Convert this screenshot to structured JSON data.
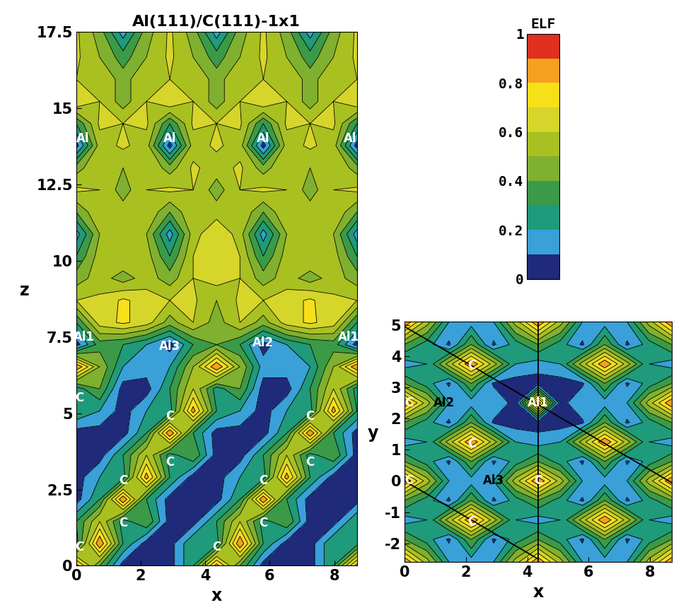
{
  "chart_data": [
    {
      "type": "contour",
      "title": "Al(111)/C(111)-1x1",
      "x_label": "x",
      "y_label": "z",
      "xlim": [
        0,
        8.7
      ],
      "ylim": [
        0,
        17.5
      ],
      "xticks": [
        0,
        2,
        4,
        6,
        8
      ],
      "yticks": [
        0,
        2.5,
        5,
        7.5,
        10,
        12.5,
        15,
        17.5
      ],
      "x": [
        0,
        0.725,
        1.45,
        2.175,
        2.9,
        3.625,
        4.35,
        5.075,
        5.8,
        6.525,
        7.25,
        7.975,
        8.7
      ],
      "y": [
        0,
        0.725,
        1.45,
        2.175,
        2.9,
        3.625,
        4.35,
        5.075,
        5.8,
        6.525,
        7.25,
        7.975,
        8.7,
        9.425,
        10.15,
        10.875,
        11.6,
        12.325,
        13.05,
        13.775,
        14.5,
        15.225,
        15.95,
        16.675,
        17.5
      ],
      "values": [
        [
          0.85,
          0.4,
          0.05,
          0.05,
          0.05,
          0.3,
          0.85,
          0.4,
          0.05,
          0.05,
          0.05,
          0.3,
          0.85
        ],
        [
          0.25,
          0.9,
          0.3,
          0.05,
          0.05,
          0.3,
          0.25,
          0.9,
          0.3,
          0.05,
          0.05,
          0.3,
          0.25
        ],
        [
          0.3,
          0.6,
          0.25,
          0.4,
          0.05,
          0.05,
          0.3,
          0.6,
          0.25,
          0.4,
          0.05,
          0.05,
          0.3
        ],
        [
          0.05,
          0.3,
          0.9,
          0.3,
          0.05,
          0.05,
          0.05,
          0.3,
          0.9,
          0.3,
          0.05,
          0.05,
          0.05
        ],
        [
          0.05,
          0.2,
          0.25,
          0.85,
          0.3,
          0.05,
          0.05,
          0.2,
          0.25,
          0.85,
          0.3,
          0.05,
          0.05
        ],
        [
          0.05,
          0.05,
          0.3,
          0.6,
          0.25,
          0.4,
          0.05,
          0.05,
          0.3,
          0.6,
          0.25,
          0.4,
          0.05
        ],
        [
          0.05,
          0.05,
          0.05,
          0.3,
          0.9,
          0.3,
          0.05,
          0.05,
          0.05,
          0.3,
          0.9,
          0.3,
          0.05
        ],
        [
          0.3,
          0.2,
          0.05,
          0.2,
          0.25,
          0.85,
          0.3,
          0.2,
          0.05,
          0.2,
          0.25,
          0.85,
          0.3
        ],
        [
          0.25,
          0.4,
          0.05,
          0.05,
          0.3,
          0.6,
          0.25,
          0.4,
          0.05,
          0.05,
          0.3,
          0.6,
          0.25
        ],
        [
          0.9,
          0.5,
          0.2,
          0.15,
          0.2,
          0.5,
          0.9,
          0.5,
          0.15,
          0.15,
          0.2,
          0.5,
          0.9
        ],
        [
          0.05,
          0.35,
          0.3,
          0.2,
          0.05,
          0.3,
          0.4,
          0.3,
          0.05,
          0.2,
          0.3,
          0.35,
          0.05
        ],
        [
          0.3,
          0.65,
          0.72,
          0.65,
          0.45,
          0.6,
          0.45,
          0.6,
          0.45,
          0.65,
          0.72,
          0.65,
          0.3
        ],
        [
          0.6,
          0.62,
          0.72,
          0.65,
          0.6,
          0.62,
          0.5,
          0.62,
          0.6,
          0.65,
          0.72,
          0.62,
          0.6
        ],
        [
          0.45,
          0.55,
          0.45,
          0.55,
          0.45,
          0.6,
          0.65,
          0.6,
          0.45,
          0.55,
          0.45,
          0.55,
          0.45
        ],
        [
          0.3,
          0.55,
          0.6,
          0.55,
          0.3,
          0.6,
          0.65,
          0.6,
          0.3,
          0.55,
          0.6,
          0.55,
          0.3
        ],
        [
          0.15,
          0.5,
          0.6,
          0.5,
          0.15,
          0.55,
          0.7,
          0.55,
          0.15,
          0.5,
          0.6,
          0.5,
          0.15
        ],
        [
          0.4,
          0.6,
          0.55,
          0.6,
          0.4,
          0.6,
          0.55,
          0.6,
          0.4,
          0.6,
          0.55,
          0.6,
          0.4
        ],
        [
          0.62,
          0.6,
          0.45,
          0.6,
          0.62,
          0.6,
          0.45,
          0.6,
          0.62,
          0.6,
          0.45,
          0.6,
          0.62
        ],
        [
          0.45,
          0.6,
          0.5,
          0.6,
          0.45,
          0.62,
          0.55,
          0.62,
          0.45,
          0.6,
          0.5,
          0.6,
          0.45
        ],
        [
          0.05,
          0.55,
          0.62,
          0.55,
          0.05,
          0.55,
          0.62,
          0.55,
          0.05,
          0.55,
          0.62,
          0.55,
          0.05
        ],
        [
          0.3,
          0.62,
          0.6,
          0.62,
          0.3,
          0.62,
          0.6,
          0.62,
          0.3,
          0.62,
          0.6,
          0.62,
          0.3
        ],
        [
          0.7,
          0.6,
          0.45,
          0.6,
          0.7,
          0.6,
          0.45,
          0.6,
          0.7,
          0.6,
          0.45,
          0.6,
          0.7
        ],
        [
          0.6,
          0.6,
          0.45,
          0.6,
          0.6,
          0.6,
          0.45,
          0.6,
          0.6,
          0.6,
          0.45,
          0.6,
          0.6
        ],
        [
          0.62,
          0.5,
          0.35,
          0.5,
          0.62,
          0.5,
          0.35,
          0.5,
          0.62,
          0.5,
          0.35,
          0.5,
          0.62
        ],
        [
          0.62,
          0.45,
          0.15,
          0.45,
          0.62,
          0.45,
          0.15,
          0.45,
          0.62,
          0.45,
          0.15,
          0.45,
          0.62
        ]
      ],
      "atoms": [
        {
          "label": "Al",
          "x": 0.2,
          "y": 14.0,
          "color": "white"
        },
        {
          "label": "Al",
          "x": 2.9,
          "y": 14.0,
          "color": "white"
        },
        {
          "label": "Al",
          "x": 5.8,
          "y": 14.0,
          "color": "white"
        },
        {
          "label": "Al",
          "x": 8.5,
          "y": 14.0,
          "color": "white"
        },
        {
          "label": "Al1",
          "x": 0.25,
          "y": 7.5,
          "color": "white"
        },
        {
          "label": "Al3",
          "x": 2.9,
          "y": 7.2,
          "color": "white"
        },
        {
          "label": "Al2",
          "x": 5.8,
          "y": 7.3,
          "color": "white"
        },
        {
          "label": "Al1",
          "x": 8.45,
          "y": 7.5,
          "color": "white"
        },
        {
          "label": "C",
          "x": 0.1,
          "y": 0.6,
          "color": "white"
        },
        {
          "label": "C",
          "x": 1.45,
          "y": 1.4,
          "color": "white"
        },
        {
          "label": "C",
          "x": 1.45,
          "y": 2.8,
          "color": "white"
        },
        {
          "label": "C",
          "x": 2.9,
          "y": 3.4,
          "color": "white"
        },
        {
          "label": "C",
          "x": 2.9,
          "y": 4.9,
          "color": "white"
        },
        {
          "label": "C",
          "x": 4.35,
          "y": 0.6,
          "color": "white"
        },
        {
          "label": "C",
          "x": 5.8,
          "y": 1.4,
          "color": "white"
        },
        {
          "label": "C",
          "x": 5.8,
          "y": 2.8,
          "color": "white"
        },
        {
          "label": "C",
          "x": 7.25,
          "y": 3.4,
          "color": "white"
        },
        {
          "label": "C",
          "x": 7.25,
          "y": 4.9,
          "color": "white"
        },
        {
          "label": "C",
          "x": 0.1,
          "y": 5.5,
          "color": "white"
        }
      ]
    },
    {
      "type": "contour",
      "x_label": "x",
      "y_label": "y",
      "xlim": [
        0,
        8.7
      ],
      "ylim": [
        -2.6,
        5.1
      ],
      "xticks": [
        0,
        2,
        4,
        6,
        8
      ],
      "yticks": [
        -2,
        -1,
        0,
        1,
        2,
        3,
        4,
        5
      ],
      "x": [
        0,
        0.725,
        1.45,
        2.175,
        2.9,
        3.625,
        4.35,
        5.075,
        5.8,
        6.525,
        7.25,
        7.975,
        8.7
      ],
      "y": [
        -2.6,
        -1.875,
        -1.25,
        -0.625,
        0,
        0.625,
        1.25,
        1.875,
        2.5,
        3.125,
        3.75,
        4.375,
        5.1
      ],
      "values": [
        [
          0.9,
          0.55,
          0.2,
          0.15,
          0.2,
          0.55,
          0.9,
          0.55,
          0.2,
          0.15,
          0.2,
          0.55,
          0.9
        ],
        [
          0.4,
          0.25,
          0.08,
          0.4,
          0.08,
          0.25,
          0.4,
          0.25,
          0.08,
          0.4,
          0.08,
          0.25,
          0.4
        ],
        [
          0.15,
          0.2,
          0.55,
          0.9,
          0.55,
          0.2,
          0.15,
          0.2,
          0.55,
          0.9,
          0.55,
          0.2,
          0.15
        ],
        [
          0.4,
          0.25,
          0.08,
          0.4,
          0.08,
          0.25,
          0.4,
          0.25,
          0.08,
          0.4,
          0.08,
          0.25,
          0.4
        ],
        [
          0.9,
          0.55,
          0.2,
          0.15,
          0.2,
          0.55,
          0.9,
          0.55,
          0.2,
          0.15,
          0.2,
          0.55,
          0.9
        ],
        [
          0.4,
          0.25,
          0.08,
          0.4,
          0.08,
          0.25,
          0.4,
          0.25,
          0.08,
          0.4,
          0.08,
          0.25,
          0.4
        ],
        [
          0.15,
          0.2,
          0.55,
          0.9,
          0.55,
          0.2,
          0.15,
          0.2,
          0.55,
          0.9,
          0.55,
          0.2,
          0.15
        ],
        [
          0.4,
          0.25,
          0.08,
          0.4,
          0.08,
          0.05,
          0.05,
          0.05,
          0.08,
          0.4,
          0.08,
          0.25,
          0.4
        ],
        [
          0.9,
          0.55,
          0.2,
          0.15,
          0.2,
          0.05,
          0.9,
          0.05,
          0.2,
          0.15,
          0.2,
          0.55,
          0.9
        ],
        [
          0.4,
          0.25,
          0.08,
          0.4,
          0.08,
          0.05,
          0.05,
          0.05,
          0.08,
          0.4,
          0.08,
          0.25,
          0.4
        ],
        [
          0.15,
          0.2,
          0.55,
          0.9,
          0.55,
          0.2,
          0.15,
          0.2,
          0.55,
          0.9,
          0.55,
          0.2,
          0.15
        ],
        [
          0.4,
          0.25,
          0.08,
          0.4,
          0.08,
          0.25,
          0.4,
          0.25,
          0.08,
          0.4,
          0.08,
          0.25,
          0.4
        ],
        [
          0.9,
          0.55,
          0.2,
          0.15,
          0.2,
          0.55,
          0.9,
          0.55,
          0.2,
          0.15,
          0.2,
          0.55,
          0.9
        ]
      ],
      "atoms": [
        {
          "label": "C",
          "x": 2.2,
          "y": 3.7,
          "color": "white"
        },
        {
          "label": "C",
          "x": 2.2,
          "y": 1.2,
          "color": "white"
        },
        {
          "label": "C",
          "x": 2.2,
          "y": -1.3,
          "color": "white"
        },
        {
          "label": "C",
          "x": 0.15,
          "y": 0.0,
          "color": "white"
        },
        {
          "label": "C",
          "x": 0.15,
          "y": 2.5,
          "color": "white"
        },
        {
          "label": "C",
          "x": 4.35,
          "y": 0.0,
          "color": "white"
        },
        {
          "label": "Al1",
          "x": 4.35,
          "y": 2.5,
          "color": "white"
        },
        {
          "label": "Al2",
          "x": 1.3,
          "y": 2.5,
          "color": "black"
        },
        {
          "label": "Al3",
          "x": 2.9,
          "y": 0.0,
          "color": "black"
        }
      ],
      "cut_lines": [
        [
          [
            0,
            4.95
          ],
          [
            8.7,
            -0.05
          ]
        ],
        [
          [
            4.35,
            5.1
          ],
          [
            4.35,
            -2.6
          ]
        ],
        [
          [
            0,
            0
          ],
          [
            4.35,
            -2.5
          ]
        ]
      ]
    }
  ],
  "colorbar": {
    "title": "ELF",
    "levels": [
      0,
      0.1,
      0.2,
      0.3,
      0.4,
      0.5,
      0.6,
      0.7,
      0.8,
      0.9,
      1
    ],
    "colors": [
      "#1f2a7a",
      "#3aa0d8",
      "#1f9a7a",
      "#3a9a48",
      "#7fb030",
      "#a8c020",
      "#d6d52a",
      "#f7e01a",
      "#f5a020",
      "#e03020"
    ],
    "ticks": [
      0,
      0.2,
      0.4,
      0.6,
      0.8,
      1
    ]
  }
}
